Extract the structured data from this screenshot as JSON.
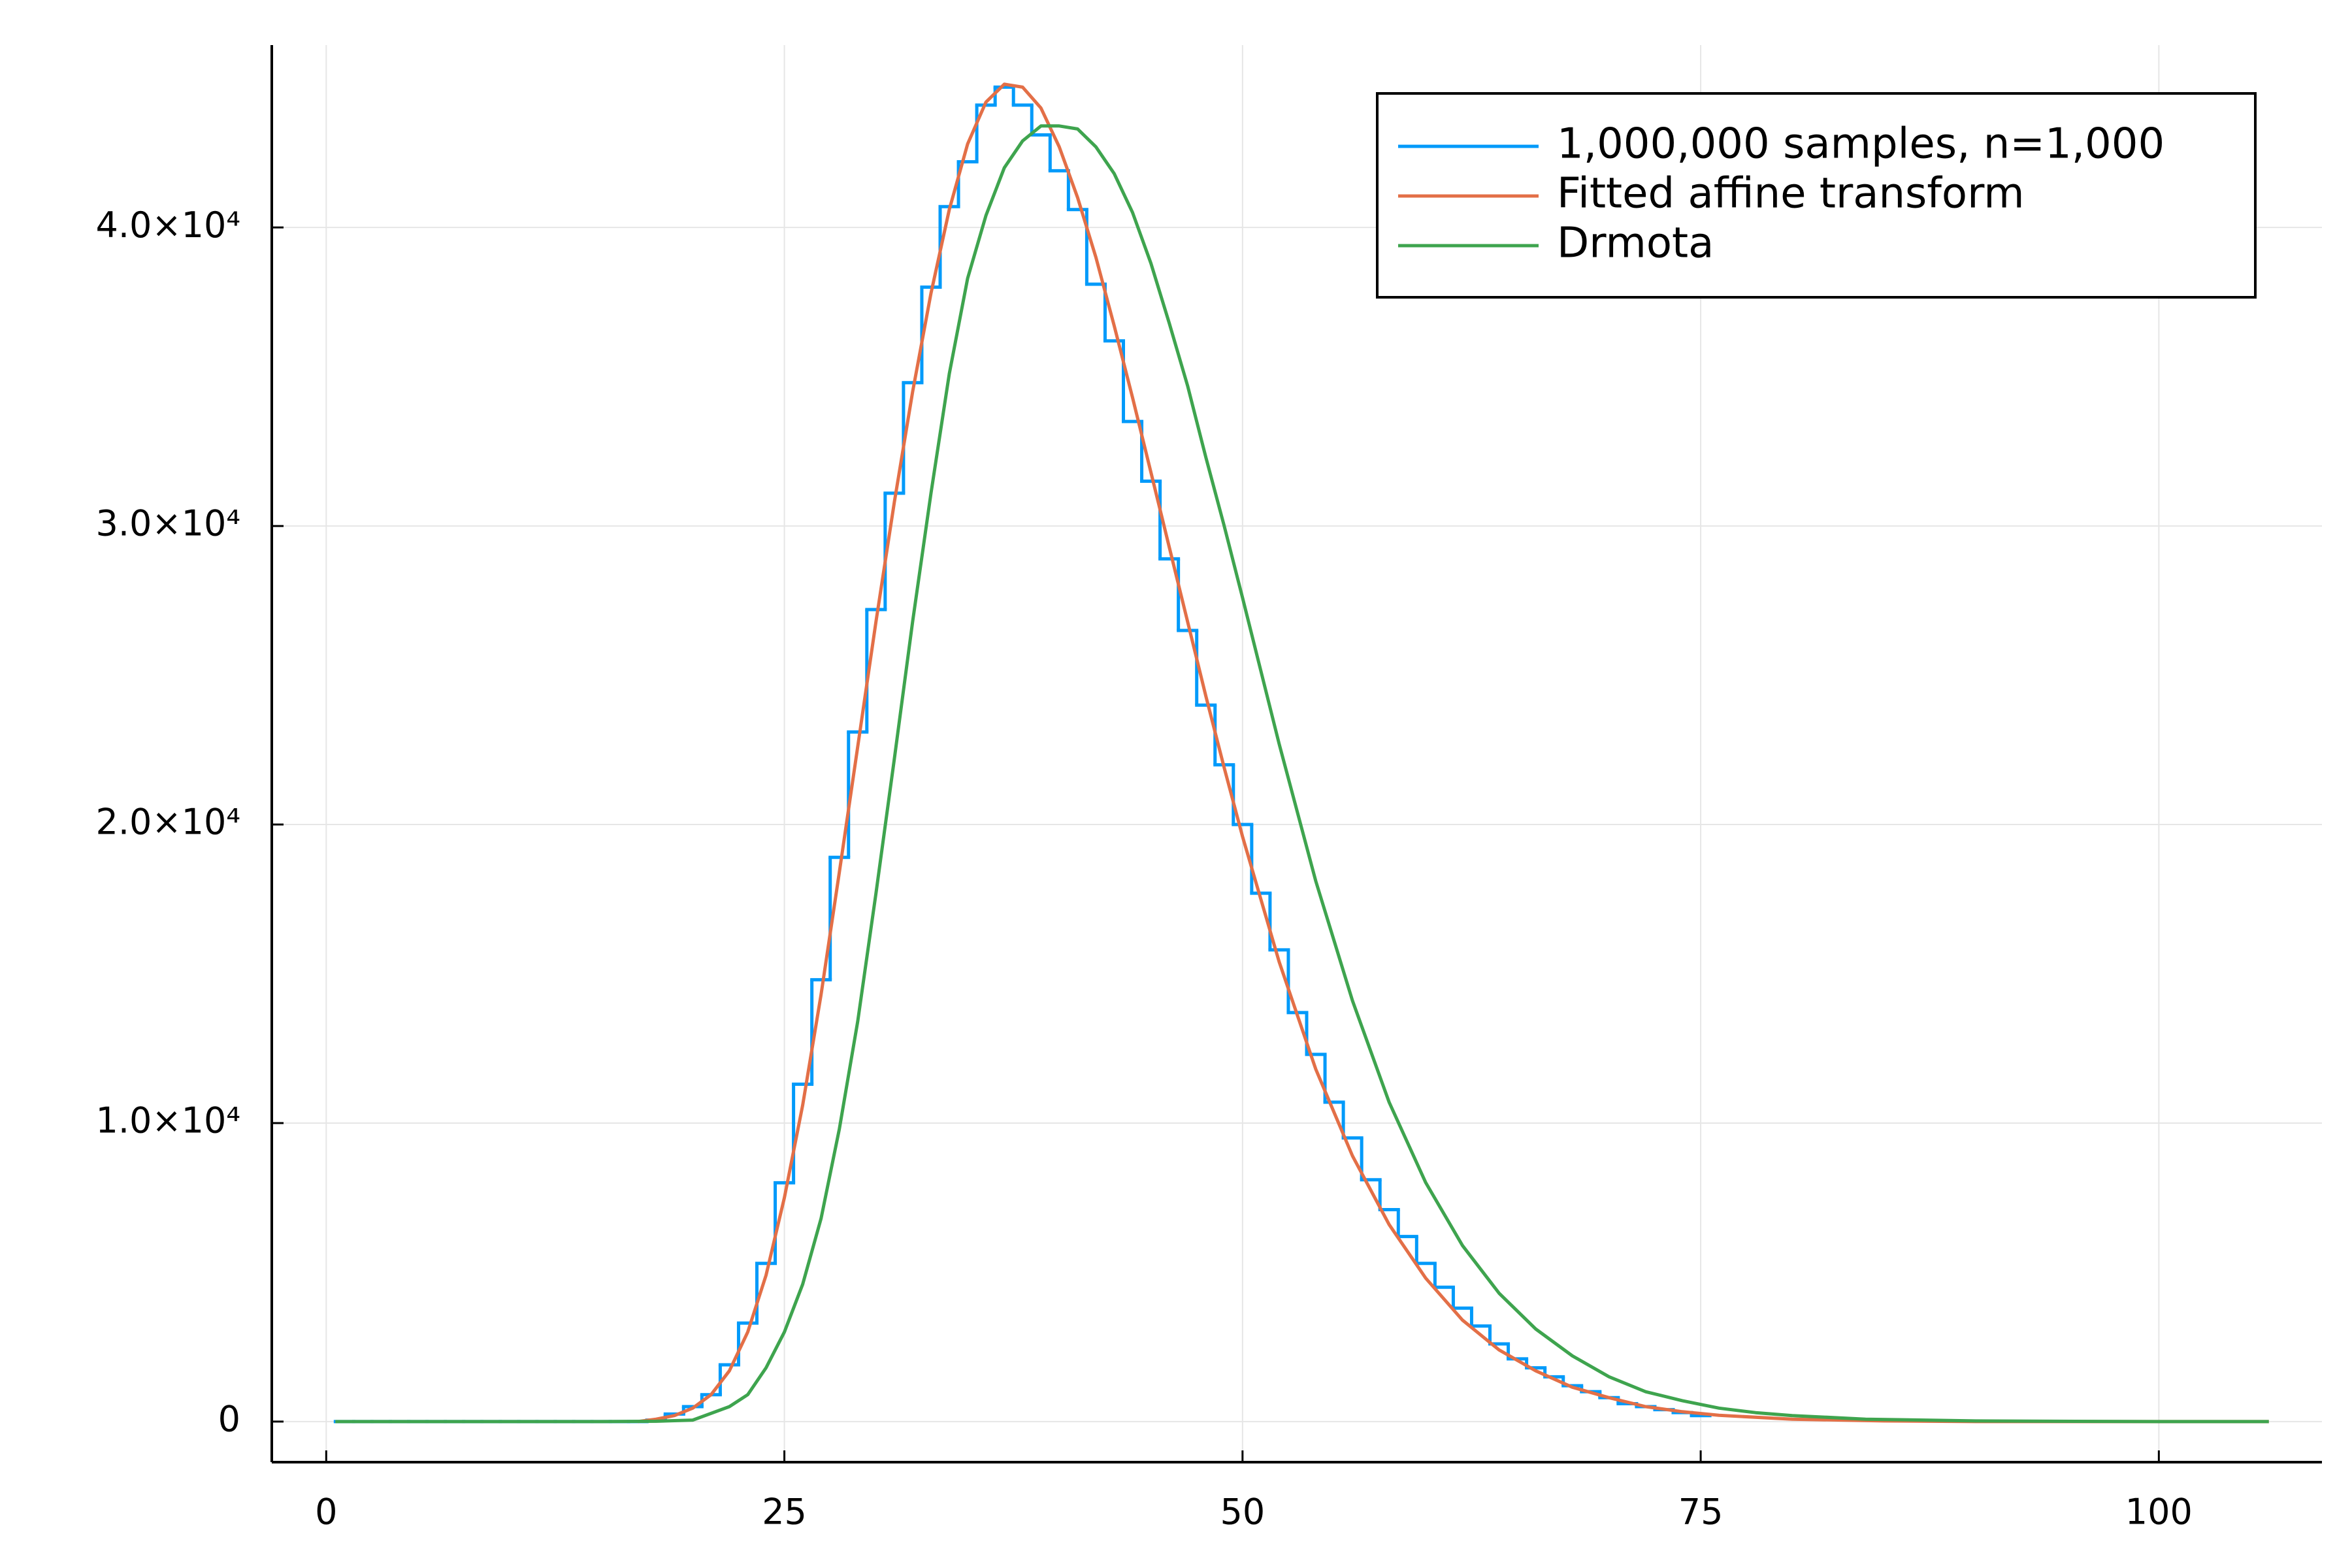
{
  "chart_data": {
    "type": "line",
    "xlim": [
      -2.97,
      108.9
    ],
    "xticks": [
      0,
      25,
      50,
      75,
      100
    ],
    "ylim": [
      -1360,
      46110
    ],
    "yticks": [
      0,
      {
        "value": 10000,
        "label": "1.0×10⁴"
      },
      {
        "value": 20000,
        "label": "2.0×10⁴"
      },
      {
        "value": 30000,
        "label": "3.0×10⁴"
      },
      {
        "value": 40000,
        "label": "4.0×10⁴"
      }
    ],
    "grid": true,
    "legend": "topright",
    "series": [
      {
        "name": "1,000,000 samples, n=1,000",
        "color": "#009afa",
        "type": "step",
        "x": [
          1,
          2,
          3,
          4,
          5,
          6,
          7,
          8,
          9,
          10,
          11,
          12,
          13,
          14,
          15,
          16,
          17,
          18,
          19,
          20,
          21,
          22,
          23,
          24,
          25,
          26,
          27,
          28,
          29,
          30,
          31,
          32,
          33,
          34,
          35,
          36,
          37,
          38,
          39,
          40,
          41,
          42,
          43,
          44,
          45,
          46,
          47,
          48,
          49,
          50,
          51,
          52,
          53,
          54,
          55,
          56,
          57,
          58,
          59,
          60,
          61,
          62,
          63,
          64,
          65,
          66,
          67,
          68,
          69,
          70,
          71,
          72,
          73,
          74,
          75
        ],
        "values": [
          0,
          0,
          0,
          0,
          0,
          0,
          0,
          0,
          0,
          0,
          0,
          0,
          0,
          0,
          0,
          0,
          0,
          50,
          250,
          500,
          900,
          1900,
          3300,
          5300,
          8000,
          11300,
          14800,
          18900,
          23100,
          27200,
          31100,
          34800,
          38000,
          40700,
          42200,
          44100,
          44700,
          44100,
          43100,
          41900,
          40600,
          38100,
          36200,
          33500,
          31500,
          28900,
          26500,
          24000,
          22000,
          20000,
          17700,
          15800,
          13700,
          12300,
          10700,
          9500,
          8100,
          7100,
          6200,
          5300,
          4500,
          3800,
          3200,
          2600,
          2100,
          1800,
          1500,
          1200,
          1000,
          800,
          600,
          500,
          400,
          300,
          200
        ]
      },
      {
        "name": "Fitted affine transform",
        "color": "#e36f47",
        "type": "line",
        "x": [
          17,
          18,
          19,
          20,
          21,
          22,
          23,
          24,
          25,
          26,
          27,
          28,
          29,
          30,
          31,
          32,
          33,
          34,
          35,
          36,
          37,
          38,
          39,
          40,
          41,
          42,
          43,
          44,
          45,
          46,
          47,
          48,
          49,
          50,
          52,
          54,
          56,
          58,
          60,
          62,
          64,
          66,
          68,
          70,
          72,
          74,
          76,
          80,
          85,
          90,
          106
        ],
        "values": [
          0,
          80,
          200,
          450,
          900,
          1700,
          3000,
          4900,
          7500,
          10600,
          14300,
          18400,
          22600,
          26800,
          30800,
          34500,
          37800,
          40600,
          42800,
          44200,
          44800,
          44700,
          44000,
          42700,
          41000,
          39000,
          36700,
          34300,
          31800,
          29300,
          26800,
          24300,
          21900,
          19600,
          15400,
          11800,
          8900,
          6600,
          4800,
          3400,
          2400,
          1700,
          1150,
          800,
          500,
          330,
          210,
          80,
          20,
          0,
          0
        ]
      },
      {
        "name": "Drmota",
        "color": "#3ea44e",
        "type": "line",
        "x": [
          0.5,
          15,
          18,
          20,
          22,
          23,
          24,
          25,
          26,
          27,
          28,
          29,
          30,
          31,
          32,
          33,
          34,
          35,
          36,
          37,
          38,
          39,
          40,
          41,
          42,
          43,
          44,
          45,
          46,
          47,
          48,
          49,
          50,
          52,
          54,
          56,
          58,
          60,
          62,
          64,
          66,
          68,
          70,
          72,
          74,
          76,
          78,
          80,
          84,
          90,
          100,
          106
        ],
        "values": [
          0,
          0,
          10,
          50,
          500,
          900,
          1800,
          3000,
          4600,
          6800,
          9800,
          13400,
          17700,
          22200,
          26800,
          31100,
          35100,
          38300,
          40400,
          42000,
          42900,
          43400,
          43400,
          43300,
          42700,
          41800,
          40500,
          38800,
          36800,
          34700,
          32300,
          30000,
          27600,
          22700,
          18100,
          14100,
          10700,
          8000,
          5900,
          4300,
          3100,
          2200,
          1500,
          1000,
          700,
          450,
          300,
          200,
          80,
          20,
          0,
          0
        ]
      }
    ]
  }
}
